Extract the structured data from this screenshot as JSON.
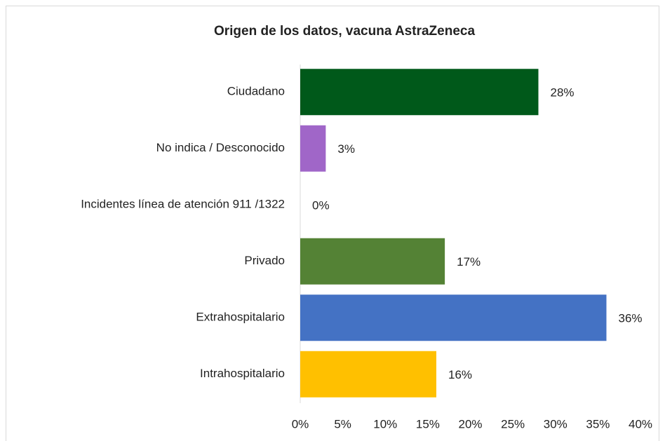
{
  "chart_data": {
    "type": "bar",
    "orientation": "horizontal",
    "title": "Origen de los datos, vacuna AstraZeneca",
    "categories": [
      "Ciudadano",
      "No indica / Desconocido",
      "Incidentes línea de atención 911 /1322",
      "Privado",
      "Extrahospitalario",
      "Intrahospitalario"
    ],
    "values": [
      28,
      3,
      0,
      17,
      36,
      16
    ],
    "value_labels": [
      "28%",
      "3%",
      "0%",
      "17%",
      "36%",
      "16%"
    ],
    "colors": [
      "#00591a",
      "#a066c8",
      "#7f7f7f",
      "#548235",
      "#4472c4",
      "#ffc000"
    ],
    "xlim": [
      0,
      40
    ],
    "xticks": [
      {
        "value": 0,
        "label": "0%"
      },
      {
        "value": 5,
        "label": "5%"
      },
      {
        "value": 10,
        "label": "10%"
      },
      {
        "value": 15,
        "label": "15%"
      },
      {
        "value": 20,
        "label": "20%"
      },
      {
        "value": 25,
        "label": "25%"
      },
      {
        "value": 30,
        "label": "30%"
      },
      {
        "value": 35,
        "label": "35%"
      },
      {
        "value": 40,
        "label": "40%"
      }
    ],
    "grid": false
  }
}
